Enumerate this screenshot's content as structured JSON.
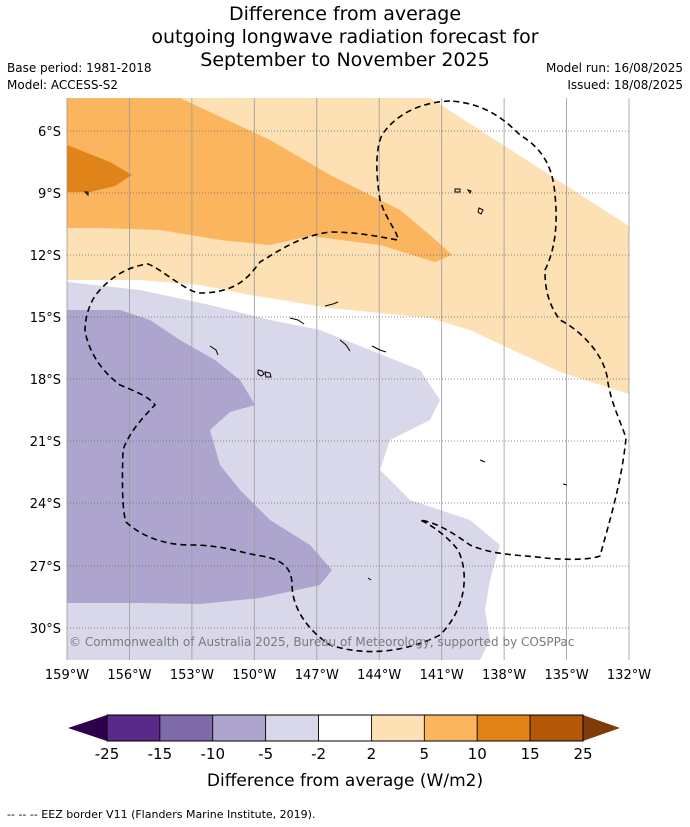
{
  "title": {
    "line1": "Difference from average",
    "line2": "outgoing longwave radiation forecast for",
    "line3": "September to November 2025"
  },
  "meta": {
    "base_period": "Base period: 1981-2018",
    "model": "Model: ACCESS-S2",
    "model_run": "Model run: 16/08/2025",
    "issued": "Issued: 18/08/2025"
  },
  "map": {
    "lat_labels": [
      "6°S",
      "9°S",
      "12°S",
      "15°S",
      "18°S",
      "21°S",
      "24°S",
      "27°S",
      "30°S"
    ],
    "lon_labels": [
      "159°W",
      "156°W",
      "153°W",
      "150°W",
      "147°W",
      "144°W",
      "141°W",
      "138°W",
      "135°W",
      "132°W"
    ],
    "copyright": "© Commonwealth of Australia 2025, Bureau of Meteorology, supported by COSPPac"
  },
  "colorbar": {
    "label": "Difference from average (W/m2)",
    "ticks": [
      "-25",
      "-15",
      "-10",
      "-5",
      "-2",
      "2",
      "5",
      "10",
      "15",
      "25"
    ],
    "colors": [
      "#5a2a8a",
      "#7e6aa8",
      "#aea5cf",
      "#d8d8ea",
      "#ffffff",
      "#fde0b4",
      "#fbb55e",
      "#e0841a",
      "#b35806"
    ],
    "under_color": "#2d004b",
    "over_color": "#7f3b08"
  },
  "footer": "--  --  -- EEZ border V11 (Flanders Marine Institute, 2019)."
}
